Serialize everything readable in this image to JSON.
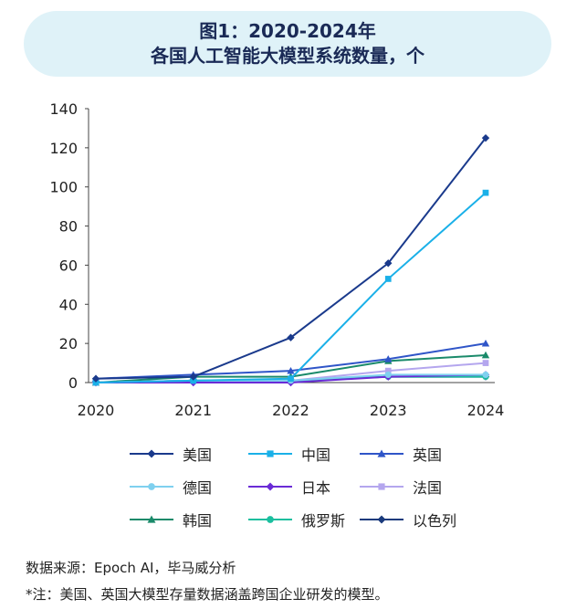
{
  "header": {
    "line1": "图1：2020-2024年",
    "line2": "各国人工智能大模型系统数量，个"
  },
  "footer": {
    "source": "数据来源：Epoch AI，毕马威分析",
    "note": "*注：美国、英国大模型存量数据涵盖跨国企业研发的模型。"
  },
  "chart_data": {
    "type": "line",
    "title": "图1：2020-2024年 各国人工智能大模型系统数量，个",
    "x": [
      "2020",
      "2021",
      "2022",
      "2023",
      "2024"
    ],
    "ylim": [
      0,
      140
    ],
    "yticks": [
      0,
      20,
      40,
      60,
      80,
      100,
      120,
      140
    ],
    "grid": false,
    "legend_position": "bottom",
    "series": [
      {
        "name": "美国",
        "values": [
          2,
          3,
          23,
          61,
          125
        ],
        "color": "#1a3a8c",
        "marker": "diamond"
      },
      {
        "name": "中国",
        "values": [
          0,
          1,
          2,
          53,
          97
        ],
        "color": "#1ab0e8",
        "marker": "square"
      },
      {
        "name": "英国",
        "values": [
          2,
          4,
          6,
          12,
          20
        ],
        "color": "#2f55c8",
        "marker": "triangle"
      },
      {
        "name": "德国",
        "values": [
          0,
          1,
          1,
          4,
          4
        ],
        "color": "#7fd0ef",
        "marker": "circle"
      },
      {
        "name": "日本",
        "values": [
          0,
          0,
          0,
          3,
          4
        ],
        "color": "#6a2bd6",
        "marker": "diamond"
      },
      {
        "name": "法国",
        "values": [
          0,
          1,
          1,
          6,
          10
        ],
        "color": "#b4a6ee",
        "marker": "square"
      },
      {
        "name": "韩国",
        "values": [
          0,
          3,
          3,
          11,
          14
        ],
        "color": "#1a8a6a",
        "marker": "triangle"
      },
      {
        "name": "俄罗斯",
        "values": [
          0,
          1,
          1,
          3,
          3
        ],
        "color": "#1bbf9f",
        "marker": "circle"
      },
      {
        "name": "以色列",
        "values": [
          0,
          1,
          1,
          3,
          3
        ],
        "color": "#1a3a7c",
        "marker": "diamond"
      }
    ]
  }
}
